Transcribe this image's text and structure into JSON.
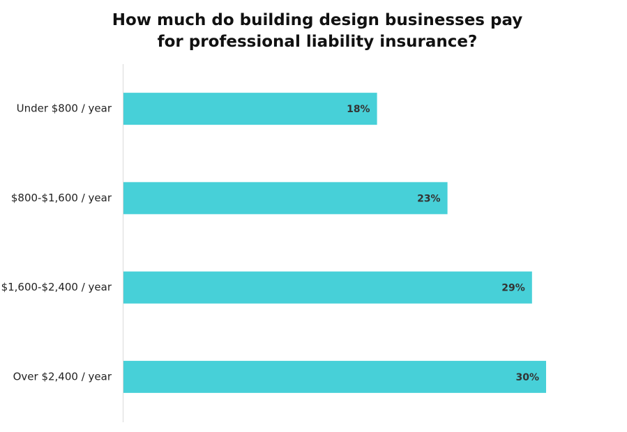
{
  "chart_data": {
    "type": "bar",
    "orientation": "horizontal",
    "title": "How much do building design businesses pay for professional liability insurance?",
    "categories": [
      "Under $800 / year",
      "$800-$1,600 / year",
      "$1,600-$2,400 / year",
      "Over $2,400 / year"
    ],
    "values": [
      18,
      23,
      29,
      30
    ],
    "value_labels": [
      "18%",
      "23%",
      "29%",
      "30%"
    ],
    "color": "#47d0d8"
  }
}
